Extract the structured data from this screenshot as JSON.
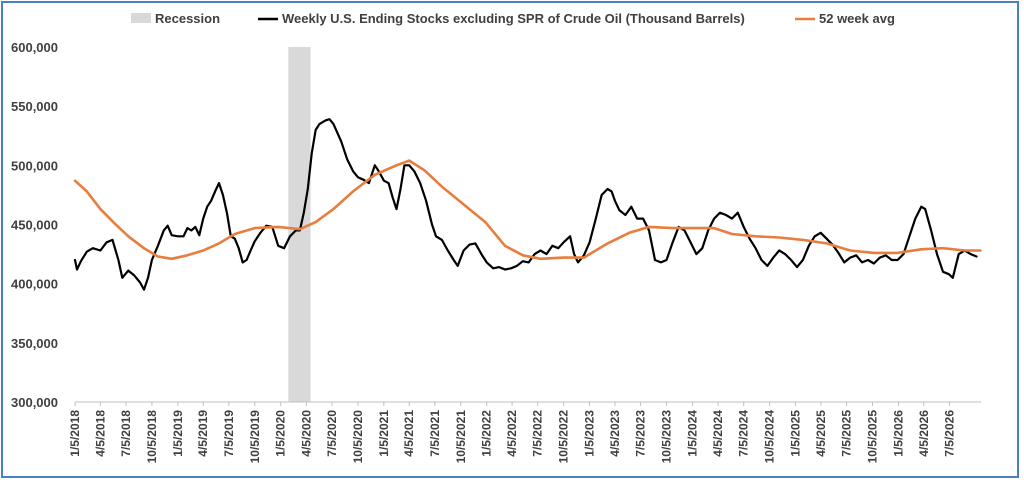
{
  "chart_data": {
    "type": "line",
    "title": "",
    "xlabel": "",
    "ylabel": "",
    "ylim": [
      300000,
      600000
    ],
    "y_ticks": [
      "300,000",
      "350,000",
      "400,000",
      "450,000",
      "500,000",
      "550,000",
      "600,000"
    ],
    "y_tick_values": [
      300000,
      350000,
      400000,
      450000,
      500000,
      550000,
      600000
    ],
    "x_ticks": [
      "1/5/2018",
      "4/5/2018",
      "7/5/2018",
      "10/5/2018",
      "1/5/2019",
      "4/5/2019",
      "7/5/2019",
      "10/5/2019",
      "1/5/2020",
      "4/5/2020",
      "7/5/2020",
      "10/5/2020",
      "1/5/2021",
      "4/5/2021",
      "7/5/2021",
      "10/5/2021",
      "1/5/2022",
      "4/5/2022",
      "7/5/2022",
      "10/5/2022",
      "1/5/2023",
      "4/5/2023",
      "7/5/2023",
      "10/5/2023",
      "1/5/2024",
      "4/5/2024",
      "7/5/2024",
      "10/5/2024",
      "1/5/2025",
      "4/5/2025",
      "7/5/2025",
      "10/5/2025",
      "1/5/2026",
      "4/5/2026",
      "7/5/2026"
    ],
    "x_tick_dates": [
      "2018-01-05",
      "2018-04-05",
      "2018-07-05",
      "2018-10-05",
      "2019-01-05",
      "2019-04-05",
      "2019-07-05",
      "2019-10-05",
      "2020-01-05",
      "2020-04-05",
      "2020-07-05",
      "2020-10-05",
      "2021-01-05",
      "2021-04-05",
      "2021-07-05",
      "2021-10-05",
      "2022-01-05",
      "2022-04-05",
      "2022-07-05",
      "2022-10-05",
      "2023-01-05",
      "2023-04-05",
      "2023-07-05",
      "2023-10-05",
      "2024-01-05",
      "2024-04-05",
      "2024-07-05",
      "2024-10-05",
      "2025-01-05",
      "2025-04-05",
      "2025-07-05",
      "2025-10-05",
      "2026-01-05",
      "2026-04-05",
      "2026-07-05"
    ],
    "x_range": [
      "2018-01-05",
      "2026-10-25"
    ],
    "recession": {
      "name": "Recession",
      "start": "2020-02-01",
      "end": "2020-04-20",
      "color": "#d9d9d9"
    },
    "legend_position": "top",
    "grid": false,
    "series": [
      {
        "name": "Weekly U.S. Ending Stocks excluding SPR of Crude Oil  (Thousand Barrels)",
        "color": "#000000",
        "points": [
          [
            "2018-01-05",
            420000
          ],
          [
            "2018-01-12",
            412000
          ],
          [
            "2018-01-26",
            419000
          ],
          [
            "2018-02-16",
            427000
          ],
          [
            "2018-03-09",
            430000
          ],
          [
            "2018-04-05",
            428000
          ],
          [
            "2018-04-27",
            435000
          ],
          [
            "2018-05-18",
            437000
          ],
          [
            "2018-06-08",
            420000
          ],
          [
            "2018-06-22",
            405000
          ],
          [
            "2018-07-13",
            411000
          ],
          [
            "2018-08-03",
            407000
          ],
          [
            "2018-08-24",
            401000
          ],
          [
            "2018-09-07",
            395000
          ],
          [
            "2018-09-21",
            405000
          ],
          [
            "2018-10-05",
            420000
          ],
          [
            "2018-10-26",
            432000
          ],
          [
            "2018-11-16",
            445000
          ],
          [
            "2018-11-30",
            449000
          ],
          [
            "2018-12-14",
            441000
          ],
          [
            "2019-01-05",
            440000
          ],
          [
            "2019-01-25",
            440000
          ],
          [
            "2019-02-08",
            447000
          ],
          [
            "2019-02-22",
            445000
          ],
          [
            "2019-03-08",
            448000
          ],
          [
            "2019-03-22",
            441000
          ],
          [
            "2019-04-05",
            455000
          ],
          [
            "2019-04-19",
            465000
          ],
          [
            "2019-05-03",
            470000
          ],
          [
            "2019-05-17",
            478000
          ],
          [
            "2019-05-31",
            485000
          ],
          [
            "2019-06-14",
            475000
          ],
          [
            "2019-06-28",
            460000
          ],
          [
            "2019-07-12",
            440000
          ],
          [
            "2019-07-26",
            438000
          ],
          [
            "2019-08-09",
            430000
          ],
          [
            "2019-08-23",
            418000
          ],
          [
            "2019-09-06",
            420000
          ],
          [
            "2019-09-20",
            428000
          ],
          [
            "2019-10-05",
            436000
          ],
          [
            "2019-10-25",
            443000
          ],
          [
            "2019-11-15",
            449000
          ],
          [
            "2019-12-06",
            448000
          ],
          [
            "2019-12-27",
            432000
          ],
          [
            "2020-01-17",
            430000
          ],
          [
            "2020-02-07",
            440000
          ],
          [
            "2020-02-28",
            445000
          ],
          [
            "2020-03-13",
            445000
          ],
          [
            "2020-03-27",
            460000
          ],
          [
            "2020-04-10",
            480000
          ],
          [
            "2020-04-24",
            510000
          ],
          [
            "2020-05-08",
            530000
          ],
          [
            "2020-05-22",
            535000
          ],
          [
            "2020-06-12",
            538000
          ],
          [
            "2020-06-26",
            539000
          ],
          [
            "2020-07-10",
            535000
          ],
          [
            "2020-08-07",
            520000
          ],
          [
            "2020-08-28",
            505000
          ],
          [
            "2020-09-18",
            495000
          ],
          [
            "2020-10-05",
            490000
          ],
          [
            "2020-10-23",
            488000
          ],
          [
            "2020-11-13",
            485000
          ],
          [
            "2020-12-04",
            500000
          ],
          [
            "2020-12-18",
            495000
          ],
          [
            "2021-01-05",
            487000
          ],
          [
            "2021-01-22",
            485000
          ],
          [
            "2021-02-05",
            473000
          ],
          [
            "2021-02-19",
            463000
          ],
          [
            "2021-03-05",
            480000
          ],
          [
            "2021-03-19",
            500000
          ],
          [
            "2021-04-05",
            500000
          ],
          [
            "2021-04-23",
            495000
          ],
          [
            "2021-05-14",
            485000
          ],
          [
            "2021-06-04",
            470000
          ],
          [
            "2021-06-25",
            450000
          ],
          [
            "2021-07-09",
            440000
          ],
          [
            "2021-07-30",
            437000
          ],
          [
            "2021-08-20",
            428000
          ],
          [
            "2021-09-10",
            420000
          ],
          [
            "2021-09-24",
            415000
          ],
          [
            "2021-10-15",
            428000
          ],
          [
            "2021-11-05",
            433000
          ],
          [
            "2021-11-26",
            434000
          ],
          [
            "2021-12-17",
            425000
          ],
          [
            "2022-01-05",
            418000
          ],
          [
            "2022-01-28",
            413000
          ],
          [
            "2022-02-18",
            414000
          ],
          [
            "2022-03-11",
            412000
          ],
          [
            "2022-04-01",
            413000
          ],
          [
            "2022-04-22",
            415000
          ],
          [
            "2022-05-13",
            419000
          ],
          [
            "2022-06-03",
            418000
          ],
          [
            "2022-06-24",
            425000
          ],
          [
            "2022-07-15",
            428000
          ],
          [
            "2022-08-05",
            425000
          ],
          [
            "2022-08-26",
            432000
          ],
          [
            "2022-09-16",
            430000
          ],
          [
            "2022-10-05",
            435000
          ],
          [
            "2022-10-28",
            440000
          ],
          [
            "2022-11-11",
            425000
          ],
          [
            "2022-11-25",
            418000
          ],
          [
            "2022-12-16",
            424000
          ],
          [
            "2023-01-05",
            435000
          ],
          [
            "2023-01-27",
            455000
          ],
          [
            "2023-02-17",
            475000
          ],
          [
            "2023-03-10",
            480000
          ],
          [
            "2023-03-24",
            478000
          ],
          [
            "2023-04-05",
            470000
          ],
          [
            "2023-04-21",
            462000
          ],
          [
            "2023-05-12",
            458000
          ],
          [
            "2023-06-02",
            465000
          ],
          [
            "2023-06-23",
            455000
          ],
          [
            "2023-07-14",
            455000
          ],
          [
            "2023-08-04",
            445000
          ],
          [
            "2023-08-25",
            420000
          ],
          [
            "2023-09-15",
            418000
          ],
          [
            "2023-10-05",
            420000
          ],
          [
            "2023-10-27",
            435000
          ],
          [
            "2023-11-17",
            448000
          ],
          [
            "2023-12-08",
            445000
          ],
          [
            "2023-12-29",
            435000
          ],
          [
            "2024-01-19",
            425000
          ],
          [
            "2024-02-09",
            430000
          ],
          [
            "2024-03-01",
            445000
          ],
          [
            "2024-03-22",
            455000
          ],
          [
            "2024-04-12",
            460000
          ],
          [
            "2024-05-03",
            458000
          ],
          [
            "2024-05-24",
            455000
          ],
          [
            "2024-06-14",
            460000
          ],
          [
            "2024-07-05",
            448000
          ],
          [
            "2024-07-26",
            438000
          ],
          [
            "2024-08-16",
            430000
          ],
          [
            "2024-09-06",
            420000
          ],
          [
            "2024-09-27",
            415000
          ],
          [
            "2024-10-18",
            422000
          ],
          [
            "2024-11-08",
            428000
          ],
          [
            "2024-11-29",
            425000
          ],
          [
            "2024-12-20",
            420000
          ],
          [
            "2025-01-10",
            414000
          ],
          [
            "2025-01-31",
            420000
          ],
          [
            "2025-02-21",
            432000
          ],
          [
            "2025-03-14",
            440000
          ],
          [
            "2025-04-04",
            443000
          ],
          [
            "2025-04-25",
            438000
          ],
          [
            "2025-05-16",
            433000
          ],
          [
            "2025-06-06",
            426000
          ],
          [
            "2025-06-27",
            418000
          ],
          [
            "2025-07-18",
            422000
          ],
          [
            "2025-08-08",
            424000
          ],
          [
            "2025-08-29",
            418000
          ],
          [
            "2025-09-19",
            420000
          ],
          [
            "2025-10-10",
            417000
          ],
          [
            "2025-10-31",
            422000
          ],
          [
            "2025-11-21",
            424000
          ],
          [
            "2025-12-12",
            420000
          ],
          [
            "2026-01-02",
            420000
          ],
          [
            "2026-01-23",
            425000
          ],
          [
            "2026-02-13",
            440000
          ],
          [
            "2026-03-06",
            455000
          ],
          [
            "2026-03-27",
            465000
          ],
          [
            "2026-04-10",
            463000
          ],
          [
            "2026-05-01",
            445000
          ],
          [
            "2026-05-22",
            425000
          ],
          [
            "2026-06-12",
            410000
          ],
          [
            "2026-07-03",
            408000
          ],
          [
            "2026-07-17",
            405000
          ],
          [
            "2026-08-07",
            425000
          ],
          [
            "2026-08-28",
            428000
          ],
          [
            "2026-09-18",
            425000
          ],
          [
            "2026-10-09",
            423000
          ]
        ]
      },
      {
        "name": "52 week avg",
        "color": "#e87d3e",
        "points": [
          [
            "2018-01-05",
            487000
          ],
          [
            "2018-02-16",
            478000
          ],
          [
            "2018-04-05",
            463000
          ],
          [
            "2018-05-25",
            451000
          ],
          [
            "2018-07-13",
            440000
          ],
          [
            "2018-09-07",
            430000
          ],
          [
            "2018-10-26",
            423000
          ],
          [
            "2018-12-14",
            421000
          ],
          [
            "2019-02-08",
            424000
          ],
          [
            "2019-04-05",
            428000
          ],
          [
            "2019-05-31",
            434000
          ],
          [
            "2019-07-26",
            442000
          ],
          [
            "2019-10-05",
            447000
          ],
          [
            "2019-12-27",
            448000
          ],
          [
            "2020-03-13",
            446000
          ],
          [
            "2020-05-08",
            452000
          ],
          [
            "2020-07-10",
            463000
          ],
          [
            "2020-09-18",
            478000
          ],
          [
            "2020-12-04",
            492000
          ],
          [
            "2021-02-19",
            500000
          ],
          [
            "2021-04-05",
            504000
          ],
          [
            "2021-05-28",
            496000
          ],
          [
            "2021-07-30",
            482000
          ],
          [
            "2021-10-15",
            467000
          ],
          [
            "2021-12-31",
            452000
          ],
          [
            "2022-03-11",
            432000
          ],
          [
            "2022-05-13",
            424000
          ],
          [
            "2022-07-15",
            421000
          ],
          [
            "2022-10-05",
            422000
          ],
          [
            "2022-12-16",
            422000
          ],
          [
            "2023-03-10",
            434000
          ],
          [
            "2023-05-26",
            443000
          ],
          [
            "2023-08-04",
            448000
          ],
          [
            "2023-10-27",
            447000
          ],
          [
            "2024-01-19",
            447000
          ],
          [
            "2024-03-22",
            447000
          ],
          [
            "2024-05-24",
            442000
          ],
          [
            "2024-08-16",
            440000
          ],
          [
            "2024-11-08",
            439000
          ],
          [
            "2025-01-31",
            437000
          ],
          [
            "2025-04-25",
            434000
          ],
          [
            "2025-07-18",
            428000
          ],
          [
            "2025-10-10",
            426000
          ],
          [
            "2026-01-02",
            426000
          ],
          [
            "2026-03-27",
            429000
          ],
          [
            "2026-06-12",
            430000
          ],
          [
            "2026-08-28",
            428000
          ],
          [
            "2026-10-23",
            428000
          ]
        ]
      }
    ]
  }
}
